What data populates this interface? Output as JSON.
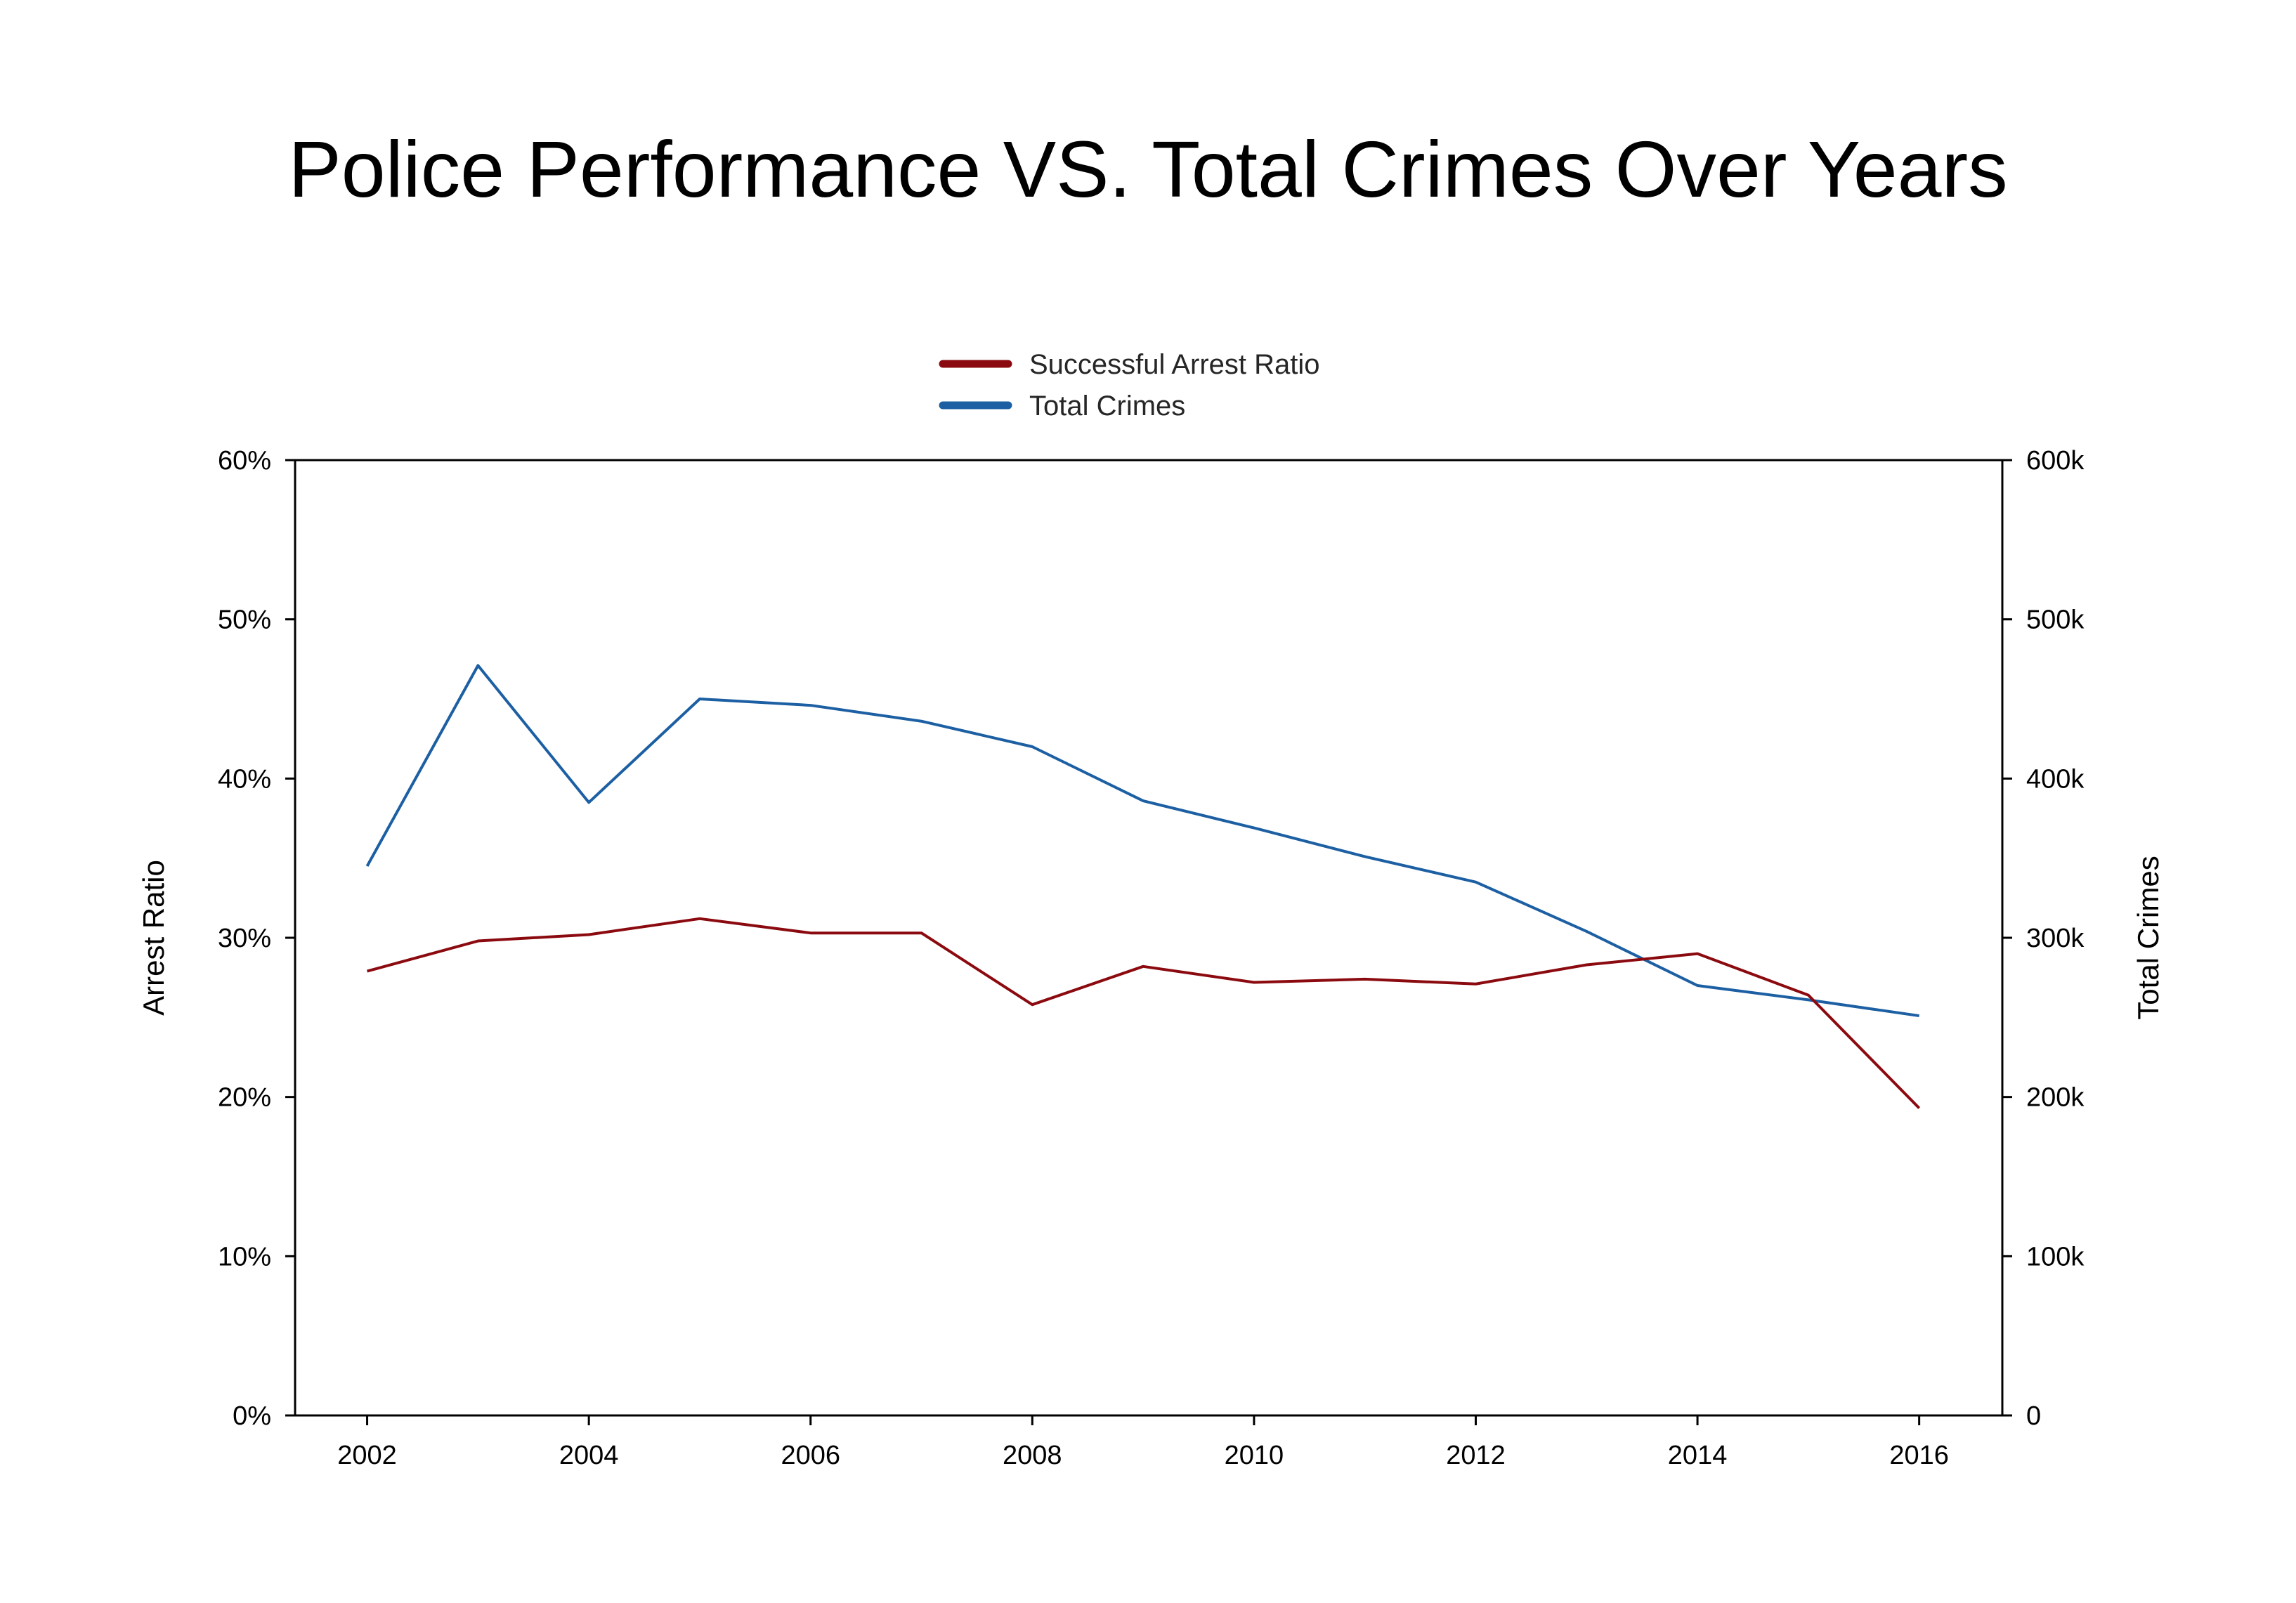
{
  "chart_data": {
    "type": "line",
    "title": "Police Performance VS. Total Crimes Over Years",
    "x": [
      2002,
      2003,
      2004,
      2005,
      2006,
      2007,
      2008,
      2009,
      2010,
      2011,
      2012,
      2013,
      2014,
      2015,
      2016
    ],
    "xticks": [
      "2002",
      "2004",
      "2006",
      "2008",
      "2010",
      "2012",
      "2014",
      "2016"
    ],
    "xlim": [
      2001.35,
      2016.75
    ],
    "ylabel_left": "Arrest Ratio",
    "ylim_left": [
      0,
      60
    ],
    "yticks_left": [
      "0%",
      "10%",
      "20%",
      "30%",
      "40%",
      "50%",
      "60%"
    ],
    "ylabel_right": "Total Crimes",
    "ylim_right": [
      0,
      600000
    ],
    "yticks_right": [
      "0",
      "100k",
      "200k",
      "300k",
      "400k",
      "500k",
      "600k"
    ],
    "grid": false,
    "legend_position": "top-center",
    "series": [
      {
        "name": "Successful Arrest Ratio",
        "axis": "left",
        "unit": "%",
        "color": "#8b0a0f",
        "values": [
          27.9,
          29.8,
          30.2,
          31.2,
          30.3,
          30.3,
          25.8,
          28.2,
          27.2,
          27.4,
          27.1,
          28.3,
          29.0,
          26.4,
          19.3
        ]
      },
      {
        "name": "Total Crimes",
        "axis": "right",
        "color": "#1c5fa3",
        "values": [
          345000,
          471000,
          385000,
          450000,
          446000,
          436000,
          420000,
          386000,
          369000,
          351000,
          335000,
          304000,
          270000,
          261000,
          251000
        ]
      }
    ]
  }
}
